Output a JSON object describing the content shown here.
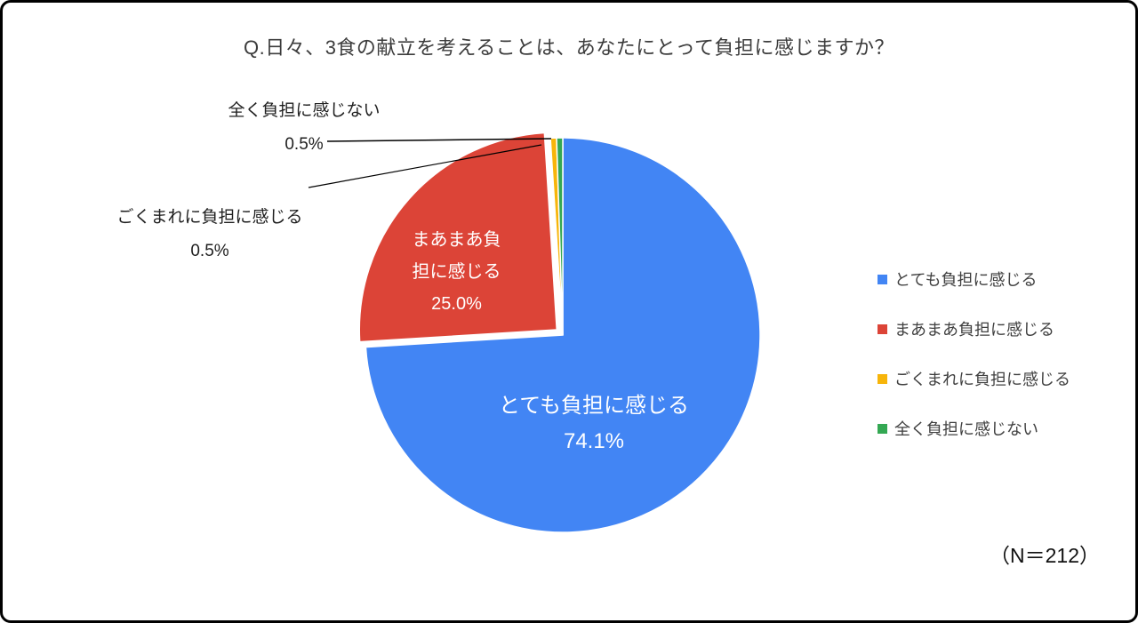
{
  "page": {
    "title": "Q.日々、3食の献立を考えることは、あなたにとって負担に感じますか？",
    "sample_size": "（N＝212）"
  },
  "chart_data": {
    "type": "pie",
    "title": "Q.日々、3食の献立を考えることは、あなたにとって負担に感じますか？",
    "sample_size_note": "（N＝212）",
    "legend_position": "right",
    "start_angle_deg": 0,
    "direction": "clockwise",
    "slices": [
      {
        "label": "とても負担に感じる",
        "value": 74.1,
        "display": "74.1%",
        "color": "#4285F4",
        "exploded": false
      },
      {
        "label": "まあまあ負担に感じる",
        "value": 25.0,
        "display": "25.0%",
        "color": "#DC4437",
        "exploded": true
      },
      {
        "label": "ごくまれに負担に感じる",
        "value": 0.5,
        "display": "0.5%",
        "color": "#F7B50A",
        "exploded": false
      },
      {
        "label": "全く負担に感じない",
        "value": 0.5,
        "display": "0.5%",
        "color": "#34A853",
        "exploded": false
      }
    ]
  },
  "callouts": [
    {
      "label": "全く負担に感じない",
      "value": "0.5%"
    },
    {
      "label": "ごくまれに負担に感じる",
      "value": "0.5%"
    }
  ],
  "slice_labels": {
    "blue": [
      "とても負担に感じる",
      "74.1%"
    ],
    "red": [
      "まあまあ負",
      "担に感じる",
      "25.0%"
    ]
  }
}
